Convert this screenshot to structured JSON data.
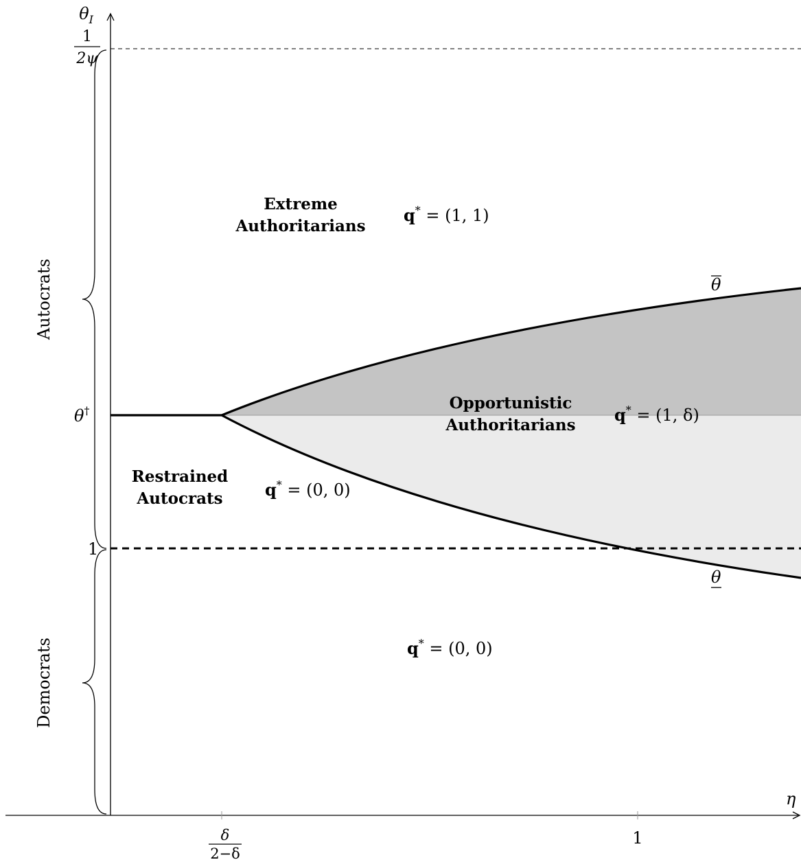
{
  "diagram": {
    "y_axis_label": "θ",
    "y_axis_label_sub": "I",
    "x_axis_label": "η",
    "y_ticks": {
      "top": {
        "num": "1",
        "den": "2ψ"
      },
      "theta_dagger": "θ",
      "theta_dagger_sup": "†",
      "one": "1"
    },
    "x_ticks": {
      "first": {
        "num": "δ",
        "den": "2−δ"
      },
      "one": "1"
    },
    "brace_labels": {
      "autocrats": "Autocrats",
      "democrats": "Democrats"
    },
    "regions": {
      "extreme": {
        "line1": "Extreme",
        "line2": "Authoritarians",
        "q": "q",
        "q_rest": " = (1, 1)"
      },
      "opportunistic": {
        "line1": "Opportunistic",
        "line2": "Authoritarians",
        "q": "q",
        "q_rest": " = (1, δ)"
      },
      "restrained": {
        "line1": "Restrained",
        "line2": "Autocrats",
        "q": "q",
        "q_rest": " = (0, 0)"
      },
      "democrats": {
        "q": "q",
        "q_rest": " = (0, 0)"
      }
    },
    "q_star": "*",
    "curve_labels": {
      "upper": "θ",
      "lower": "θ"
    },
    "colors": {
      "upper_fill": "#c4c4c4",
      "lower_fill": "#ebebeb",
      "line": "#000000"
    }
  }
}
